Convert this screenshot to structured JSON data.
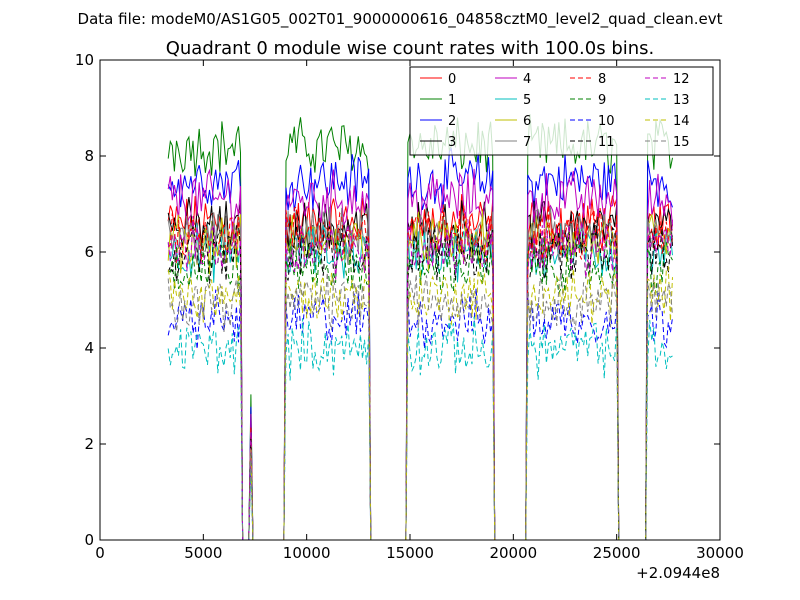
{
  "chart_data": {
    "type": "line",
    "suptitle": "Data file: modeM0/AS1G05_002T01_9000000616_04858cztM0_level2_quad_clean.evt",
    "title": "Quadrant 0 module wise count rates with 100.0s bins.",
    "xlabel": "",
    "ylabel": "",
    "xlim": [
      0,
      30000
    ],
    "ylim": [
      0,
      10
    ],
    "x_offset_label": "+2.0944e8",
    "x_ticks": [
      0,
      5000,
      10000,
      15000,
      20000,
      25000,
      30000
    ],
    "x_tick_labels": [
      "0",
      "5000",
      "10000",
      "15000",
      "20000",
      "25000",
      "30000"
    ],
    "y_ticks": [
      0,
      2,
      4,
      6,
      8,
      10
    ],
    "y_tick_labels": [
      "0",
      "2",
      "4",
      "6",
      "8",
      "10"
    ],
    "grid": false,
    "legend_position": "top-right",
    "legend_columns": 4,
    "bin_width": 100,
    "x_start": 3300,
    "x_end": 27700,
    "segments": [
      [
        3300,
        6800
      ],
      [
        9000,
        13000
      ],
      [
        14900,
        19000
      ],
      [
        20700,
        25000
      ],
      [
        26500,
        27700
      ]
    ],
    "spikes": [
      7300
    ],
    "series": [
      {
        "name": "0",
        "level": 6.6,
        "color": "#ff0000",
        "dash": "solid"
      },
      {
        "name": "1",
        "level": 8.2,
        "color": "#008000",
        "dash": "solid"
      },
      {
        "name": "2",
        "level": 7.5,
        "color": "#0000ff",
        "dash": "solid"
      },
      {
        "name": "3",
        "level": 6.5,
        "color": "#000000",
        "dash": "solid"
      },
      {
        "name": "4",
        "level": 7.1,
        "color": "#bf00bf",
        "dash": "solid"
      },
      {
        "name": "5",
        "level": 6.0,
        "color": "#00bfbf",
        "dash": "solid"
      },
      {
        "name": "6",
        "level": 6.2,
        "color": "#bfbf00",
        "dash": "solid"
      },
      {
        "name": "7",
        "level": 6.3,
        "color": "#808080",
        "dash": "solid"
      },
      {
        "name": "8",
        "level": 6.4,
        "color": "#ff0000",
        "dash": "dashed"
      },
      {
        "name": "9",
        "level": 5.7,
        "color": "#008000",
        "dash": "dashed"
      },
      {
        "name": "10",
        "level": 4.6,
        "color": "#0000ff",
        "dash": "dashed"
      },
      {
        "name": "11",
        "level": 6.0,
        "color": "#000000",
        "dash": "dashed"
      },
      {
        "name": "12",
        "level": 6.1,
        "color": "#bf00bf",
        "dash": "dashed"
      },
      {
        "name": "13",
        "level": 4.0,
        "color": "#00bfbf",
        "dash": "dashed"
      },
      {
        "name": "14",
        "level": 5.1,
        "color": "#bfbf00",
        "dash": "dashed"
      },
      {
        "name": "15",
        "level": 5.0,
        "color": "#808080",
        "dash": "dashed"
      }
    ]
  }
}
